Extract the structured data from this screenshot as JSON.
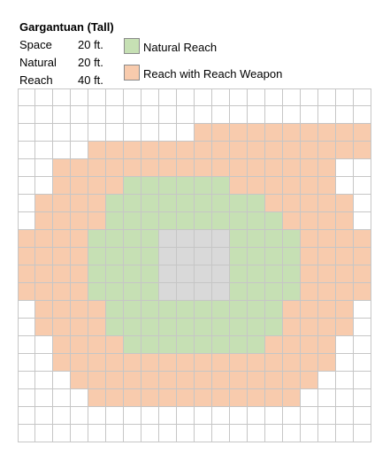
{
  "title": "Gargantuan (Tall)",
  "stats": [
    {
      "label": "Space",
      "value": "20 ft."
    },
    {
      "label": "Natural",
      "value": "20 ft."
    },
    {
      "label": "Reach",
      "value": "40 ft."
    }
  ],
  "legend": [
    {
      "label": "Natural Reach",
      "color": "#c6e0b4"
    },
    {
      "label": "Reach with Reach Weapon",
      "color": "#f8cbad"
    }
  ],
  "colors": {
    "space": "#d9d9d9",
    "empty": "#ffffff",
    "gridline": "#c6c6c6"
  },
  "grid": {
    "rows": [
      "....................",
      "....................",
      "..........RRRRRRRRRR....",
      "....RRRRRRRRRRRRRRRR....",
      "..RRRRRRRRRRRRRRRR..",
      "..RRRRNNNNNNRRRRRR..",
      ".RRRRNNNNNNNNNRRRRR.",
      ".RRRRNNNNNNNNNNRRRR.",
      "RRRRNNNNSSSSNNNNRRRR",
      "RRRRNNNNSSSSNNNNRRRR",
      "RRRRNNNNSSSSNNNNRRRR",
      "RRRRNNNNSSSSNNNNRRRR",
      ".RRRRNNNNNNNNNNRRRR.",
      ".RRRRNNNNNNNNNNRRRR.",
      "..RRRRNNNNNNNNRRRR..",
      "..RRRRRRRRRRRRRRRR..",
      "...RRRRRRRRRRRRRR...",
      "....RRRRRRRRRRRR....",
      "....................",
      "...................."
    ]
  }
}
